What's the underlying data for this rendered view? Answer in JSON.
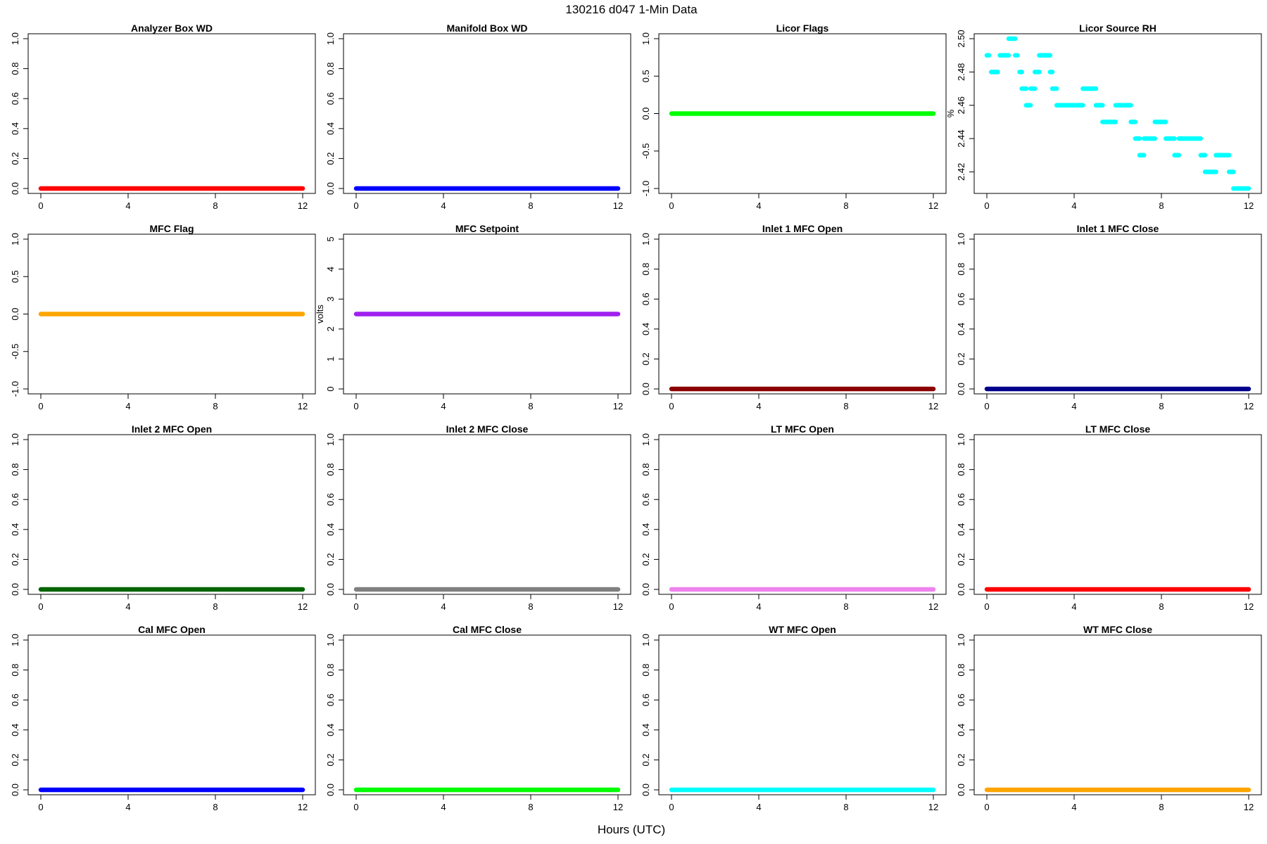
{
  "figure": {
    "title": "130216   d047   1-Min Data",
    "xlabel": "Hours (UTC)"
  },
  "chart_data": [
    {
      "type": "scatter",
      "title": "Analyzer Box WD",
      "ylabel": "",
      "xlim": [
        0,
        12
      ],
      "xticks": [
        "0",
        "4",
        "8",
        "12"
      ],
      "ylim": [
        0,
        1
      ],
      "yticks": [
        "0.0",
        "0.2",
        "0.4",
        "0.6",
        "0.8",
        "1.0"
      ],
      "color": "#ff0000",
      "series": [
        {
          "x_range": [
            0,
            12
          ],
          "value": 0
        }
      ]
    },
    {
      "type": "scatter",
      "title": "Manifold Box WD",
      "ylabel": "",
      "xlim": [
        0,
        12
      ],
      "xticks": [
        "0",
        "4",
        "8",
        "12"
      ],
      "ylim": [
        0,
        1
      ],
      "yticks": [
        "0.0",
        "0.2",
        "0.4",
        "0.6",
        "0.8",
        "1.0"
      ],
      "color": "#0000ff",
      "series": [
        {
          "x_range": [
            0,
            12
          ],
          "value": 0
        }
      ]
    },
    {
      "type": "scatter",
      "title": "Licor Flags",
      "ylabel": "",
      "xlim": [
        0,
        12
      ],
      "xticks": [
        "0",
        "4",
        "8",
        "12"
      ],
      "ylim": [
        -1,
        1
      ],
      "yticks": [
        "-1.0",
        "-0.5",
        "0.0",
        "0.5",
        "1.0"
      ],
      "color": "#00ff00",
      "series": [
        {
          "x_range": [
            0,
            12
          ],
          "value": 0
        }
      ]
    },
    {
      "type": "scatter",
      "title": "Licor Source RH",
      "ylabel": "%",
      "xlim": [
        0,
        12
      ],
      "xticks": [
        "0",
        "4",
        "8",
        "12"
      ],
      "ylim": [
        2.41,
        2.5
      ],
      "yticks": [
        "2.42",
        "2.44",
        "2.46",
        "2.48",
        "2.50"
      ],
      "color": "#00ffff",
      "segments": [
        [
          0.0,
          0.1,
          2.49
        ],
        [
          0.2,
          0.5,
          2.48
        ],
        [
          0.6,
          0.8,
          2.49
        ],
        [
          0.85,
          1.0,
          2.49
        ],
        [
          1.0,
          1.3,
          2.5
        ],
        [
          1.3,
          1.4,
          2.49
        ],
        [
          1.5,
          1.6,
          2.48
        ],
        [
          1.6,
          1.8,
          2.47
        ],
        [
          1.8,
          2.0,
          2.46
        ],
        [
          2.0,
          2.2,
          2.47
        ],
        [
          2.2,
          2.4,
          2.48
        ],
        [
          2.4,
          2.7,
          2.49
        ],
        [
          2.7,
          2.9,
          2.49
        ],
        [
          2.9,
          3.0,
          2.48
        ],
        [
          3.0,
          3.2,
          2.47
        ],
        [
          3.2,
          4.4,
          2.46
        ],
        [
          4.4,
          5.0,
          2.47
        ],
        [
          5.0,
          5.3,
          2.46
        ],
        [
          5.3,
          5.6,
          2.45
        ],
        [
          5.6,
          5.9,
          2.45
        ],
        [
          5.9,
          6.6,
          2.46
        ],
        [
          6.6,
          6.8,
          2.45
        ],
        [
          6.8,
          7.0,
          2.44
        ],
        [
          7.0,
          7.2,
          2.43
        ],
        [
          7.2,
          7.7,
          2.44
        ],
        [
          7.7,
          8.2,
          2.45
        ],
        [
          8.2,
          8.6,
          2.44
        ],
        [
          8.6,
          8.8,
          2.43
        ],
        [
          8.8,
          9.8,
          2.44
        ],
        [
          9.8,
          10.0,
          2.43
        ],
        [
          10.0,
          10.5,
          2.42
        ],
        [
          10.5,
          11.1,
          2.43
        ],
        [
          11.1,
          11.3,
          2.42
        ],
        [
          11.3,
          12.0,
          2.41
        ]
      ]
    },
    {
      "type": "scatter",
      "title": "MFC Flag",
      "ylabel": "",
      "xlim": [
        0,
        12
      ],
      "xticks": [
        "0",
        "4",
        "8",
        "12"
      ],
      "ylim": [
        -1,
        1
      ],
      "yticks": [
        "-1.0",
        "-0.5",
        "0.0",
        "0.5",
        "1.0"
      ],
      "color": "#ffa500",
      "series": [
        {
          "x_range": [
            0,
            12
          ],
          "value": 0
        }
      ]
    },
    {
      "type": "scatter",
      "title": "MFC Setpoint",
      "ylabel": "volts",
      "xlim": [
        0,
        12
      ],
      "xticks": [
        "0",
        "4",
        "8",
        "12"
      ],
      "ylim": [
        0,
        5
      ],
      "yticks": [
        "0",
        "1",
        "2",
        "3",
        "4",
        "5"
      ],
      "color": "#a020f0",
      "series": [
        {
          "x_range": [
            0,
            12
          ],
          "value": 2.5
        }
      ]
    },
    {
      "type": "scatter",
      "title": "Inlet 1 MFC Open",
      "ylabel": "",
      "xlim": [
        0,
        12
      ],
      "xticks": [
        "0",
        "4",
        "8",
        "12"
      ],
      "ylim": [
        0,
        1
      ],
      "yticks": [
        "0.0",
        "0.2",
        "0.4",
        "0.6",
        "0.8",
        "1.0"
      ],
      "color": "#8b0000",
      "series": [
        {
          "x_range": [
            0,
            12
          ],
          "value": 0
        }
      ]
    },
    {
      "type": "scatter",
      "title": "Inlet 1 MFC Close",
      "ylabel": "",
      "xlim": [
        0,
        12
      ],
      "xticks": [
        "0",
        "4",
        "8",
        "12"
      ],
      "ylim": [
        0,
        1
      ],
      "yticks": [
        "0.0",
        "0.2",
        "0.4",
        "0.6",
        "0.8",
        "1.0"
      ],
      "color": "#00008b",
      "series": [
        {
          "x_range": [
            0,
            12
          ],
          "value": 0
        }
      ]
    },
    {
      "type": "scatter",
      "title": "Inlet 2 MFC Open",
      "ylabel": "",
      "xlim": [
        0,
        12
      ],
      "xticks": [
        "0",
        "4",
        "8",
        "12"
      ],
      "ylim": [
        0,
        1
      ],
      "yticks": [
        "0.0",
        "0.2",
        "0.4",
        "0.6",
        "0.8",
        "1.0"
      ],
      "color": "#006400",
      "series": [
        {
          "x_range": [
            0,
            12
          ],
          "value": 0
        }
      ]
    },
    {
      "type": "scatter",
      "title": "Inlet 2 MFC Close",
      "ylabel": "",
      "xlim": [
        0,
        12
      ],
      "xticks": [
        "0",
        "4",
        "8",
        "12"
      ],
      "ylim": [
        0,
        1
      ],
      "yticks": [
        "0.0",
        "0.2",
        "0.4",
        "0.6",
        "0.8",
        "1.0"
      ],
      "color": "#808080",
      "series": [
        {
          "x_range": [
            0,
            12
          ],
          "value": 0
        }
      ]
    },
    {
      "type": "scatter",
      "title": "LT MFC Open",
      "ylabel": "",
      "xlim": [
        0,
        12
      ],
      "xticks": [
        "0",
        "4",
        "8",
        "12"
      ],
      "ylim": [
        0,
        1
      ],
      "yticks": [
        "0.0",
        "0.2",
        "0.4",
        "0.6",
        "0.8",
        "1.0"
      ],
      "color": "#ee82ee",
      "series": [
        {
          "x_range": [
            0,
            12
          ],
          "value": 0
        }
      ]
    },
    {
      "type": "scatter",
      "title": "LT MFC Close",
      "ylabel": "",
      "xlim": [
        0,
        12
      ],
      "xticks": [
        "0",
        "4",
        "8",
        "12"
      ],
      "ylim": [
        0,
        1
      ],
      "yticks": [
        "0.0",
        "0.2",
        "0.4",
        "0.6",
        "0.8",
        "1.0"
      ],
      "color": "#ff0000",
      "series": [
        {
          "x_range": [
            0,
            12
          ],
          "value": 0
        }
      ]
    },
    {
      "type": "scatter",
      "title": "Cal MFC Open",
      "ylabel": "",
      "xlim": [
        0,
        12
      ],
      "xticks": [
        "0",
        "4",
        "8",
        "12"
      ],
      "ylim": [
        0,
        1
      ],
      "yticks": [
        "0.0",
        "0.2",
        "0.4",
        "0.6",
        "0.8",
        "1.0"
      ],
      "color": "#0000ff",
      "series": [
        {
          "x_range": [
            0,
            12
          ],
          "value": 0
        }
      ]
    },
    {
      "type": "scatter",
      "title": "Cal MFC Close",
      "ylabel": "",
      "xlim": [
        0,
        12
      ],
      "xticks": [
        "0",
        "4",
        "8",
        "12"
      ],
      "ylim": [
        0,
        1
      ],
      "yticks": [
        "0.0",
        "0.2",
        "0.4",
        "0.6",
        "0.8",
        "1.0"
      ],
      "color": "#00ff00",
      "series": [
        {
          "x_range": [
            0,
            12
          ],
          "value": 0
        }
      ]
    },
    {
      "type": "scatter",
      "title": "WT MFC Open",
      "ylabel": "",
      "xlim": [
        0,
        12
      ],
      "xticks": [
        "0",
        "4",
        "8",
        "12"
      ],
      "ylim": [
        0,
        1
      ],
      "yticks": [
        "0.0",
        "0.2",
        "0.4",
        "0.6",
        "0.8",
        "1.0"
      ],
      "color": "#00ffff",
      "series": [
        {
          "x_range": [
            0,
            12
          ],
          "value": 0
        }
      ]
    },
    {
      "type": "scatter",
      "title": "WT MFC Close",
      "ylabel": "",
      "xlim": [
        0,
        12
      ],
      "xticks": [
        "0",
        "4",
        "8",
        "12"
      ],
      "ylim": [
        0,
        1
      ],
      "yticks": [
        "0.0",
        "0.2",
        "0.4",
        "0.6",
        "0.8",
        "1.0"
      ],
      "color": "#ffa500",
      "series": [
        {
          "x_range": [
            0,
            12
          ],
          "value": 0
        }
      ]
    }
  ]
}
